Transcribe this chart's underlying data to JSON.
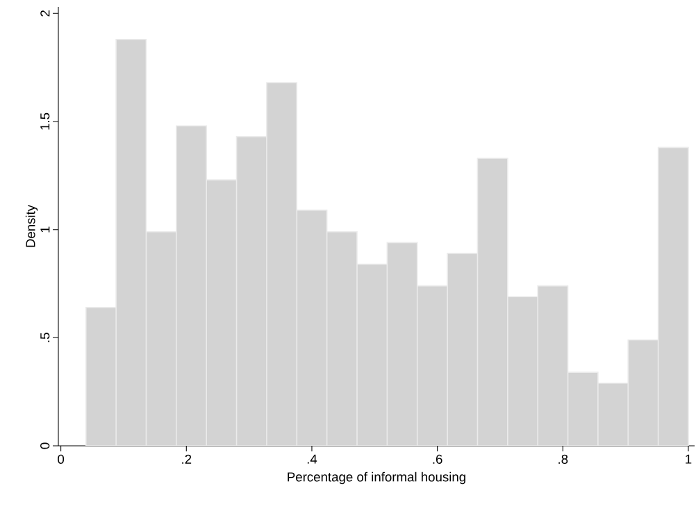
{
  "chart_data": {
    "type": "histogram",
    "xlabel": "Percentage of informal housing",
    "ylabel": "Density",
    "bins": [
      0.04,
      0.088,
      0.136,
      0.184,
      0.232,
      0.28,
      0.328,
      0.376,
      0.424,
      0.472,
      0.52,
      0.568,
      0.616,
      0.664,
      0.712,
      0.76,
      0.808,
      0.856,
      0.904,
      0.952,
      1.0
    ],
    "values": [
      0.64,
      1.88,
      0.99,
      1.48,
      1.23,
      1.43,
      1.68,
      1.09,
      0.99,
      0.84,
      0.94,
      0.74,
      0.89,
      1.33,
      0.69,
      0.74,
      0.34,
      0.29,
      0.49,
      1.38
    ],
    "color": "#d3d3d3",
    "xlim": [
      -0.004,
      1.01
    ],
    "ylim": [
      0,
      2.03
    ],
    "xticks": [
      {
        "value": 0,
        "label": "0"
      },
      {
        "value": 0.2,
        "label": ".2"
      },
      {
        "value": 0.4,
        "label": ".4"
      },
      {
        "value": 0.6,
        "label": ".6"
      },
      {
        "value": 0.8,
        "label": ".8"
      },
      {
        "value": 1,
        "label": "1"
      }
    ],
    "yticks": [
      {
        "value": 0,
        "label": "0"
      },
      {
        "value": 0.5,
        "label": ".5"
      },
      {
        "value": 1,
        "label": "1"
      },
      {
        "value": 1.5,
        "label": "1.5"
      },
      {
        "value": 2,
        "label": "2"
      }
    ],
    "grid": false
  }
}
